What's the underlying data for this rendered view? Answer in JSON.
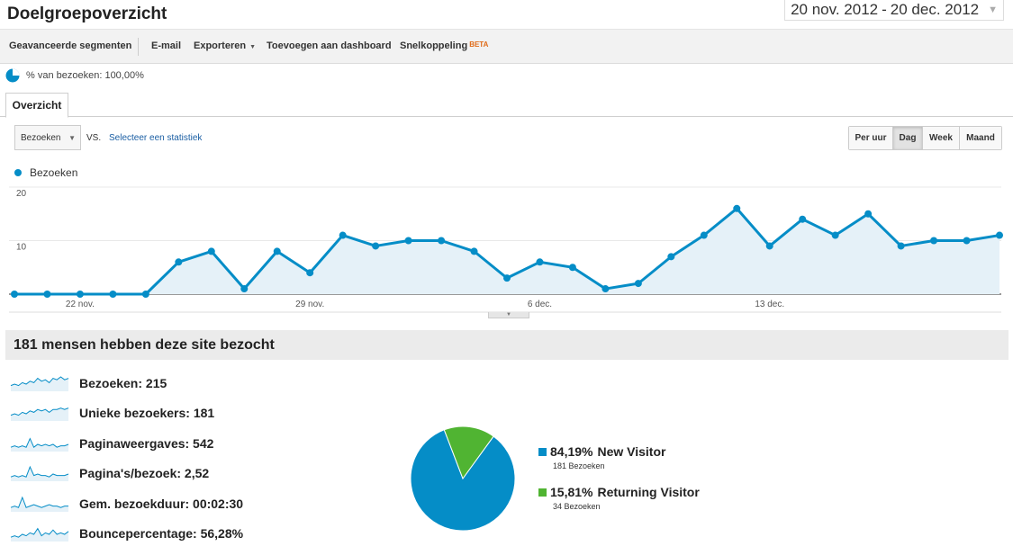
{
  "header": {
    "title": "Doelgroepoverzicht",
    "date_start": "20 nov. 2012",
    "date_sep": "-",
    "date_end": "20 dec. 2012"
  },
  "toolbar": {
    "advanced_segments": "Geavanceerde segmenten",
    "email": "E-mail",
    "export": "Exporteren",
    "add_dashboard": "Toevoegen aan dashboard",
    "shortcut": "Snelkoppeling",
    "beta": "BETA"
  },
  "segment": {
    "label": "% van bezoeken: 100,00%"
  },
  "tabs": {
    "overview": "Overzicht"
  },
  "controls": {
    "metric": "Bezoeken",
    "vs": "VS.",
    "select_metric": "Selecteer een statistiek",
    "granularity": [
      "Per uur",
      "Dag",
      "Week",
      "Maand"
    ],
    "active_granularity": "Dag"
  },
  "chart_data": {
    "type": "area",
    "series": [
      {
        "name": "Bezoeken",
        "values": [
          0,
          0,
          0,
          0,
          0,
          6,
          8,
          1,
          8,
          4,
          11,
          9,
          10,
          10,
          8,
          3,
          6,
          5,
          1,
          2,
          7,
          11,
          16,
          9,
          14,
          11,
          15,
          9,
          10,
          10,
          11
        ]
      }
    ],
    "yticks": [
      "20",
      "10"
    ],
    "ylim": [
      0,
      20
    ],
    "xtick_labels": [
      "22 nov.",
      "29 nov.",
      "6 dec.",
      "13 dec."
    ],
    "xtick_index": [
      2,
      9,
      16,
      23
    ],
    "colors": {
      "line": "#058dc7",
      "fill": "#e5f1f8"
    }
  },
  "summary": {
    "headline": "181 mensen hebben deze site bezocht",
    "metrics": [
      {
        "label": "Bezoeken:",
        "value": "215"
      },
      {
        "label": "Unieke bezoekers:",
        "value": "181"
      },
      {
        "label": "Paginaweergaves:",
        "value": "542"
      },
      {
        "label": "Pagina's/bezoek:",
        "value": "2,52"
      },
      {
        "label": "Gem. bezoekduur:",
        "value": "00:02:30"
      },
      {
        "label": "Bouncepercentage:",
        "value": "56,28%"
      }
    ]
  },
  "pie": {
    "slices": [
      {
        "pct": "84,19%",
        "label": "New Visitor",
        "count": "181 Bezoeken",
        "value": 84.19,
        "color": "#058dc7"
      },
      {
        "pct": "15,81%",
        "label": "Returning Visitor",
        "count": "34 Bezoeken",
        "value": 15.81,
        "color": "#50b432"
      }
    ]
  }
}
